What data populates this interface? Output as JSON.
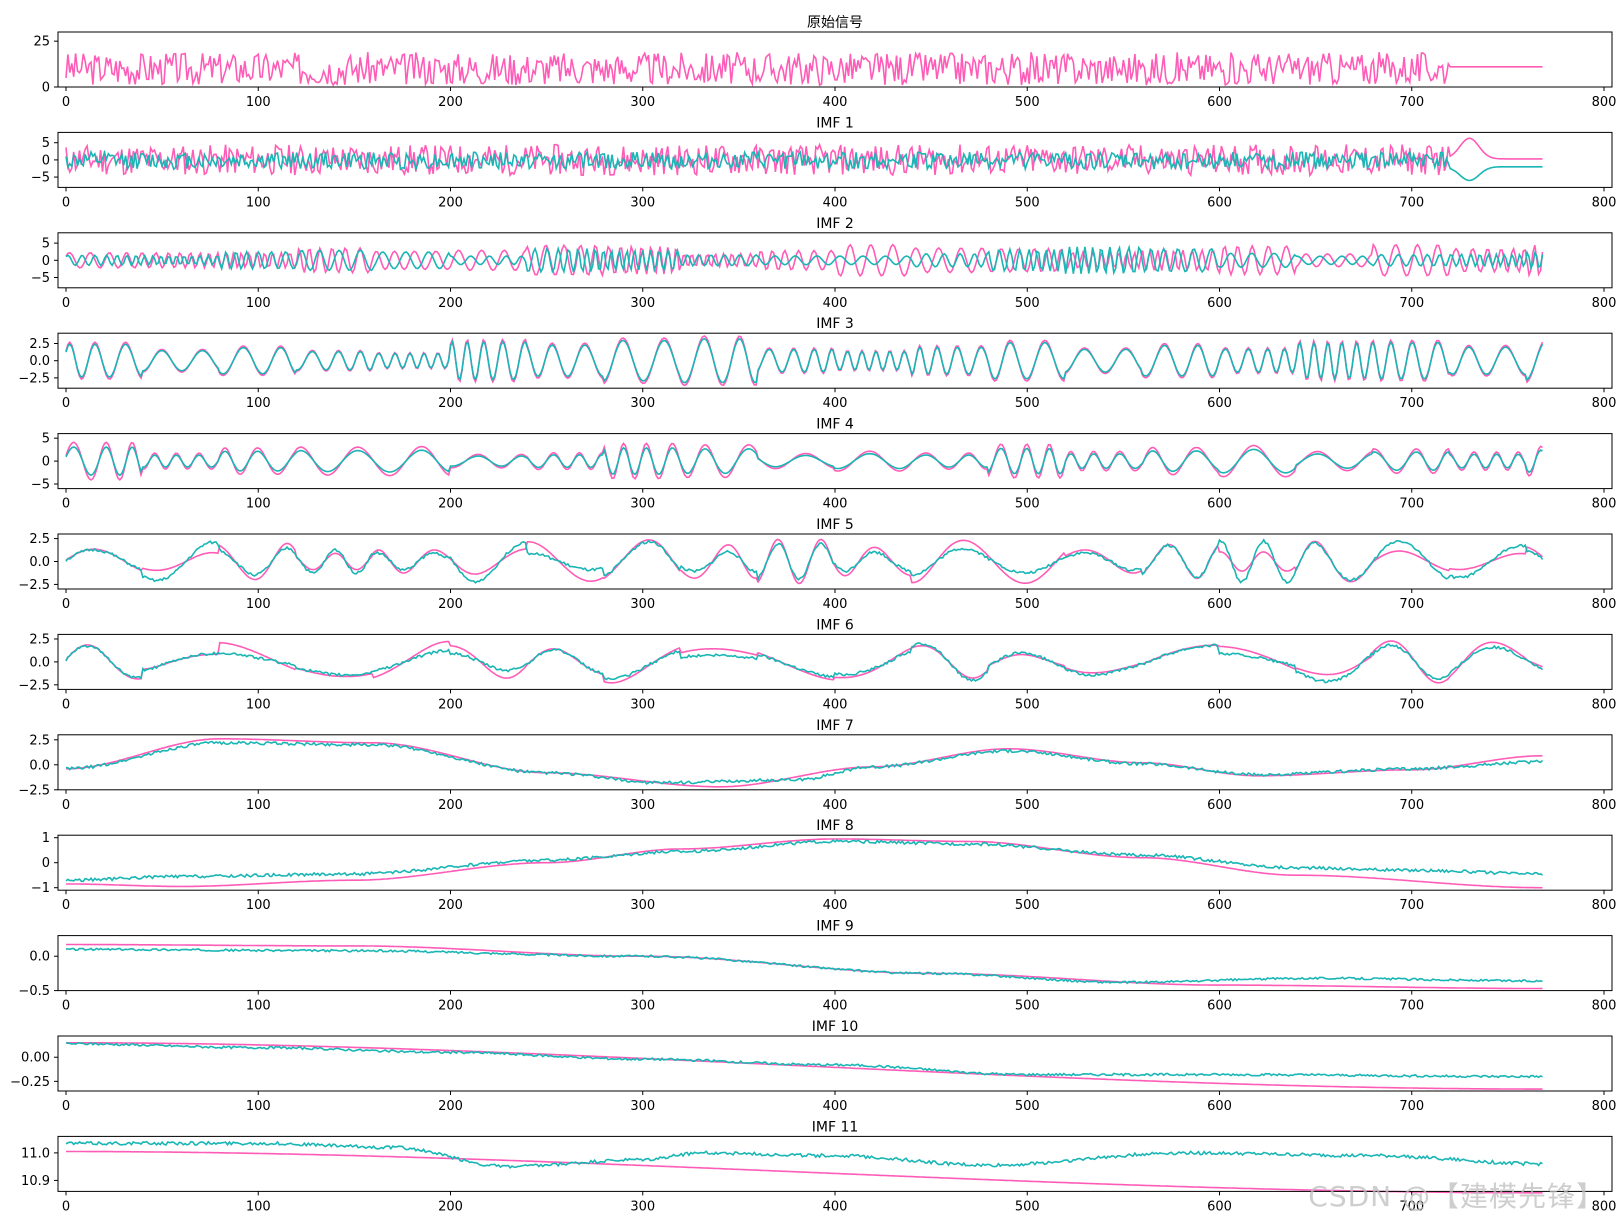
{
  "figure": {
    "watermark": "CSDN @【建模先锋】",
    "colors": {
      "original": "#ff5cb8",
      "reconstructed": "#1ab5b5"
    }
  },
  "chart_data": [
    {
      "type": "line",
      "title": "原始信号",
      "xlim": [
        0,
        800
      ],
      "xticks": [
        "0",
        "100",
        "200",
        "300",
        "400",
        "500",
        "600",
        "700",
        "800"
      ],
      "ylim": [
        0,
        30
      ],
      "yticks": [
        {
          "v": 0,
          "label": "0"
        },
        {
          "v": 25,
          "label": "25"
        }
      ],
      "series": [
        {
          "color": "#ff5cb8",
          "shape": {
            "kind": "noise",
            "mean": 10,
            "amp": 9,
            "tail_start": 720,
            "tail_value": 11,
            "seed": 3
          }
        }
      ]
    },
    {
      "type": "line",
      "title": "IMF 1",
      "xlim": [
        0,
        800
      ],
      "xticks": [
        "0",
        "100",
        "200",
        "300",
        "400",
        "500",
        "600",
        "700",
        "800"
      ],
      "ylim": [
        -8,
        8
      ],
      "yticks": [
        {
          "v": -5,
          "label": "−5"
        },
        {
          "v": 0,
          "label": "0"
        },
        {
          "v": 5,
          "label": "5"
        }
      ],
      "series": [
        {
          "color": "#ff5cb8",
          "shape": {
            "kind": "noise",
            "mean": 0,
            "amp": 4.5,
            "tail_start": 720,
            "tail_value": 0.3,
            "tail_bump": 6,
            "seed": 11
          }
        },
        {
          "color": "#1ab5b5",
          "shape": {
            "kind": "noise",
            "mean": -0.2,
            "amp": 2.5,
            "tail_start": 720,
            "tail_value": -2,
            "tail_bump": -4,
            "seed": 12
          }
        }
      ]
    },
    {
      "type": "line",
      "title": "IMF 2",
      "xlim": [
        0,
        800
      ],
      "xticks": [
        "0",
        "100",
        "200",
        "300",
        "400",
        "500",
        "600",
        "700",
        "800"
      ],
      "ylim": [
        -8,
        8
      ],
      "yticks": [
        {
          "v": -5,
          "label": "−5"
        },
        {
          "v": 0,
          "label": "0"
        },
        {
          "v": 5,
          "label": "5"
        }
      ],
      "series": [
        {
          "color": "#ff5cb8",
          "shape": {
            "kind": "osc",
            "period": 10,
            "amp": 3.5,
            "seed": 21
          }
        },
        {
          "color": "#1ab5b5",
          "shape": {
            "kind": "osc",
            "period": 10,
            "amp": 3,
            "seed": 22
          }
        }
      ]
    },
    {
      "type": "line",
      "title": "IMF 3",
      "xlim": [
        0,
        800
      ],
      "xticks": [
        "0",
        "100",
        "200",
        "300",
        "400",
        "500",
        "600",
        "700",
        "800"
      ],
      "ylim": [
        -4,
        4
      ],
      "yticks": [
        {
          "v": -2.5,
          "label": "−2.5"
        },
        {
          "v": 0,
          "label": "0.0"
        },
        {
          "v": 2.5,
          "label": "2.5"
        }
      ],
      "series": [
        {
          "color": "#ff5cb8",
          "shape": {
            "kind": "osc",
            "period": 18,
            "amp": 2.8,
            "seed": 31
          }
        },
        {
          "color": "#1ab5b5",
          "shape": {
            "kind": "osc",
            "period": 18,
            "amp": 2.5,
            "seed": 31
          }
        }
      ]
    },
    {
      "type": "line",
      "title": "IMF 4",
      "xlim": [
        0,
        800
      ],
      "xticks": [
        "0",
        "100",
        "200",
        "300",
        "400",
        "500",
        "600",
        "700",
        "800"
      ],
      "ylim": [
        -6,
        6
      ],
      "yticks": [
        {
          "v": -5,
          "label": "−5"
        },
        {
          "v": 0,
          "label": "0"
        },
        {
          "v": 5,
          "label": "5"
        }
      ],
      "series": [
        {
          "color": "#ff5cb8",
          "shape": {
            "kind": "osc",
            "period": 28,
            "amp": 3.2,
            "seed": 41
          }
        },
        {
          "color": "#1ab5b5",
          "shape": {
            "kind": "osc",
            "period": 28,
            "amp": 2.4,
            "seed": 41
          }
        }
      ]
    },
    {
      "type": "line",
      "title": "IMF 5",
      "xlim": [
        0,
        800
      ],
      "xticks": [
        "0",
        "100",
        "200",
        "300",
        "400",
        "500",
        "600",
        "700",
        "800"
      ],
      "ylim": [
        -3,
        3
      ],
      "yticks": [
        {
          "v": -2.5,
          "label": "−2.5"
        },
        {
          "v": 0,
          "label": "0.0"
        },
        {
          "v": 2.5,
          "label": "2.5"
        }
      ],
      "series": [
        {
          "color": "#ff5cb8",
          "shape": {
            "kind": "osc",
            "period": 55,
            "amp": 1.9,
            "seed": 51
          }
        },
        {
          "color": "#1ab5b5",
          "shape": {
            "kind": "osc",
            "period": 55,
            "amp": 1.8,
            "seed": 51,
            "jitter": 0.15
          }
        }
      ]
    },
    {
      "type": "line",
      "title": "IMF 6",
      "xlim": [
        0,
        800
      ],
      "xticks": [
        "0",
        "100",
        "200",
        "300",
        "400",
        "500",
        "600",
        "700",
        "800"
      ],
      "ylim": [
        -3,
        3
      ],
      "yticks": [
        {
          "v": -2.5,
          "label": "−2.5"
        },
        {
          "v": 0,
          "label": "0.0"
        },
        {
          "v": 2.5,
          "label": "2.5"
        }
      ],
      "series": [
        {
          "color": "#ff5cb8",
          "shape": {
            "kind": "osc",
            "period": 120,
            "amp": 1.8,
            "seed": 61
          }
        },
        {
          "color": "#1ab5b5",
          "shape": {
            "kind": "osc",
            "period": 120,
            "amp": 1.7,
            "seed": 61,
            "jitter": 0.15
          }
        }
      ]
    },
    {
      "type": "line",
      "title": "IMF 7",
      "xlim": [
        0,
        800
      ],
      "xticks": [
        "0",
        "100",
        "200",
        "300",
        "400",
        "500",
        "600",
        "700",
        "800"
      ],
      "ylim": [
        -2.5,
        3
      ],
      "yticks": [
        {
          "v": -2.5,
          "label": "−2.5"
        },
        {
          "v": 0,
          "label": "0.0"
        },
        {
          "v": 2.5,
          "label": "2.5"
        }
      ],
      "series": [
        {
          "color": "#ff5cb8",
          "points": [
            [
              0,
              -0.4
            ],
            [
              80,
              2.6
            ],
            [
              160,
              2.2
            ],
            [
              250,
              -0.8
            ],
            [
              340,
              -2.2
            ],
            [
              420,
              -0.2
            ],
            [
              490,
              1.6
            ],
            [
              560,
              0.2
            ],
            [
              620,
              -1.1
            ],
            [
              700,
              -0.5
            ],
            [
              768,
              0.9
            ]
          ]
        },
        {
          "color": "#1ab5b5",
          "points": [
            [
              0,
              -0.4
            ],
            [
              80,
              2.2
            ],
            [
              160,
              2.0
            ],
            [
              250,
              -0.8
            ],
            [
              310,
              -1.8
            ],
            [
              380,
              -1.5
            ],
            [
              420,
              -0.2
            ],
            [
              490,
              1.4
            ],
            [
              560,
              0.1
            ],
            [
              620,
              -1.0
            ],
            [
              700,
              -0.4
            ],
            [
              768,
              0.3
            ]
          ],
          "jitter": 0.15
        }
      ]
    },
    {
      "type": "line",
      "title": "IMF 8",
      "xlim": [
        0,
        800
      ],
      "xticks": [
        "0",
        "100",
        "200",
        "300",
        "400",
        "500",
        "600",
        "700",
        "800"
      ],
      "ylim": [
        -1.1,
        1.1
      ],
      "yticks": [
        {
          "v": -1,
          "label": "−1"
        },
        {
          "v": 0,
          "label": "0"
        },
        {
          "v": 1,
          "label": "1"
        }
      ],
      "series": [
        {
          "color": "#ff5cb8",
          "points": [
            [
              0,
              -0.85
            ],
            [
              60,
              -0.95
            ],
            [
              150,
              -0.7
            ],
            [
              250,
              0.0
            ],
            [
              320,
              0.55
            ],
            [
              400,
              0.95
            ],
            [
              470,
              0.85
            ],
            [
              560,
              0.2
            ],
            [
              640,
              -0.5
            ],
            [
              768,
              -1.0
            ]
          ]
        },
        {
          "color": "#1ab5b5",
          "points": [
            [
              0,
              -0.7
            ],
            [
              60,
              -0.55
            ],
            [
              150,
              -0.45
            ],
            [
              250,
              0.1
            ],
            [
              320,
              0.45
            ],
            [
              400,
              0.85
            ],
            [
              470,
              0.75
            ],
            [
              560,
              0.3
            ],
            [
              640,
              -0.2
            ],
            [
              700,
              -0.3
            ],
            [
              768,
              -0.45
            ]
          ],
          "jitter": 0.06
        }
      ]
    },
    {
      "type": "line",
      "title": "IMF 9",
      "xlim": [
        0,
        800
      ],
      "xticks": [
        "0",
        "100",
        "200",
        "300",
        "400",
        "500",
        "600",
        "700",
        "800"
      ],
      "ylim": [
        -0.5,
        0.3
      ],
      "yticks": [
        {
          "v": -0.5,
          "label": "−0.5"
        },
        {
          "v": 0,
          "label": "0.0"
        }
      ],
      "series": [
        {
          "color": "#ff5cb8",
          "points": [
            [
              0,
              0.17
            ],
            [
              150,
              0.15
            ],
            [
              300,
              0.0
            ],
            [
              450,
              -0.25
            ],
            [
              600,
              -0.42
            ],
            [
              768,
              -0.47
            ]
          ]
        },
        {
          "color": "#1ab5b5",
          "points": [
            [
              0,
              0.1
            ],
            [
              150,
              0.08
            ],
            [
              300,
              0.0
            ],
            [
              450,
              -0.25
            ],
            [
              550,
              -0.38
            ],
            [
              650,
              -0.32
            ],
            [
              768,
              -0.36
            ]
          ],
          "jitter": 0.015
        }
      ]
    },
    {
      "type": "line",
      "title": "IMF 10",
      "xlim": [
        0,
        800
      ],
      "xticks": [
        "0",
        "100",
        "200",
        "300",
        "400",
        "500",
        "600",
        "700",
        "800"
      ],
      "ylim": [
        -0.35,
        0.22
      ],
      "yticks": [
        {
          "v": -0.25,
          "label": "−0.25"
        },
        {
          "v": 0,
          "label": "0.00"
        }
      ],
      "series": [
        {
          "color": "#ff5cb8",
          "points": [
            [
              0,
              0.15
            ],
            [
              768,
              -0.33
            ]
          ]
        },
        {
          "color": "#1ab5b5",
          "points": [
            [
              0,
              0.14
            ],
            [
              100,
              0.1
            ],
            [
              200,
              0.05
            ],
            [
              300,
              -0.02
            ],
            [
              400,
              -0.08
            ],
            [
              500,
              -0.18
            ],
            [
              600,
              -0.18
            ],
            [
              768,
              -0.2
            ]
          ],
          "jitter": 0.012
        }
      ]
    },
    {
      "type": "line",
      "title": "IMF 11",
      "xlim": [
        0,
        800
      ],
      "xticks": [
        "0",
        "100",
        "200",
        "300",
        "400",
        "500",
        "600",
        "700",
        "800"
      ],
      "ylim": [
        10.86,
        11.06
      ],
      "yticks": [
        {
          "v": 10.9,
          "label": "10.9"
        },
        {
          "v": 11.0,
          "label": "11.0"
        }
      ],
      "series": [
        {
          "color": "#ff5cb8",
          "points": [
            [
              0,
              11.005
            ],
            [
              768,
              10.855
            ]
          ]
        },
        {
          "color": "#1ab5b5",
          "points": [
            [
              0,
              11.035
            ],
            [
              100,
              11.035
            ],
            [
              170,
              11.02
            ],
            [
              230,
              10.95
            ],
            [
              300,
              10.975
            ],
            [
              330,
              11.0
            ],
            [
              400,
              10.99
            ],
            [
              480,
              10.955
            ],
            [
              580,
              11.0
            ],
            [
              680,
              10.99
            ],
            [
              768,
              10.96
            ]
          ],
          "jitter": 0.006
        }
      ]
    }
  ]
}
